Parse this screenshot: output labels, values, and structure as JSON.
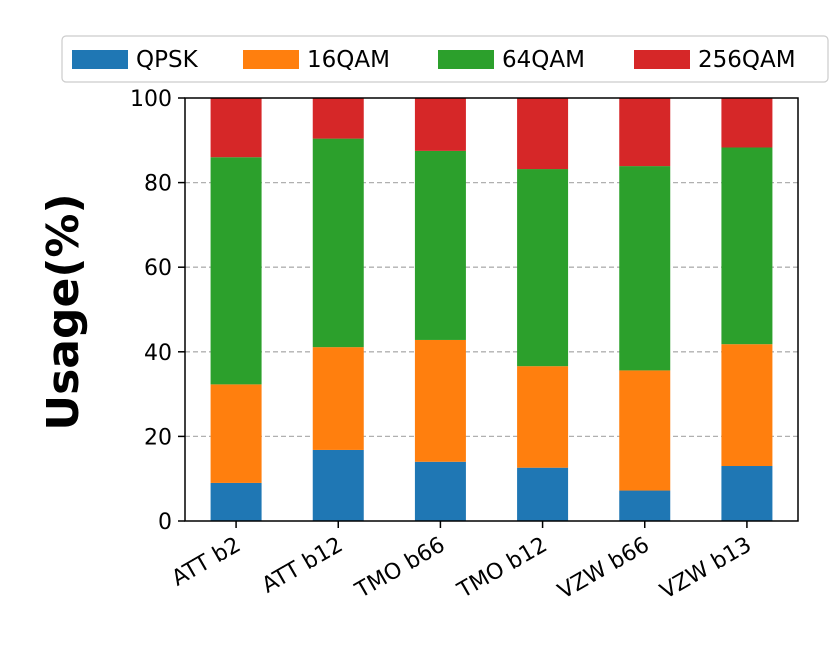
{
  "chart_data": {
    "type": "bar",
    "stacked": true,
    "title": "",
    "xlabel": "",
    "ylabel": "Usage(%)",
    "ylim": [
      0,
      100
    ],
    "yticks": [
      "0",
      "20",
      "40",
      "60",
      "80",
      "100"
    ],
    "grid": "y-dashed",
    "legend_position": "top",
    "categories": [
      "ATT b2",
      "ATT b12",
      "TMO b66",
      "TMO b12",
      "VZW b66",
      "VZW b13"
    ],
    "series": [
      {
        "name": "QPSK",
        "color": "#1f77b4",
        "values": [
          9.0,
          16.8,
          14.0,
          12.6,
          7.2,
          13.0
        ]
      },
      {
        "name": "16QAM",
        "color": "#ff7f0e",
        "values": [
          23.3,
          24.3,
          28.8,
          24.0,
          28.4,
          28.8
        ]
      },
      {
        "name": "64QAM",
        "color": "#2ca02c",
        "values": [
          53.7,
          49.3,
          44.7,
          46.6,
          48.3,
          46.5
        ]
      },
      {
        "name": "256QAM",
        "color": "#d62728",
        "values": [
          14.0,
          9.6,
          12.5,
          16.8,
          16.1,
          11.7
        ]
      }
    ]
  }
}
